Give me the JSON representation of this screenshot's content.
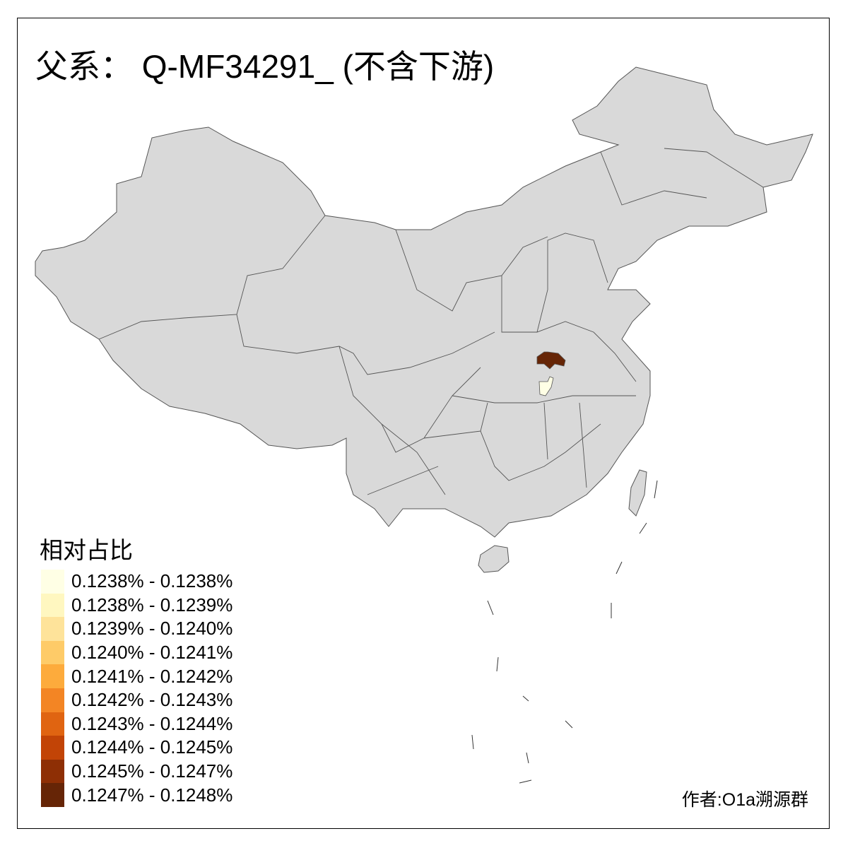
{
  "title": "父系： Q-MF34291_ (不含下游)",
  "legend": {
    "title": "相对占比",
    "items": [
      {
        "label": "0.1238% - 0.1238%",
        "color": "#FFFFE5"
      },
      {
        "label": "0.1238% - 0.1239%",
        "color": "#FFF7C0"
      },
      {
        "label": "0.1239% - 0.1240%",
        "color": "#FEE39A"
      },
      {
        "label": "0.1240% - 0.1241%",
        "color": "#FECB68"
      },
      {
        "label": "0.1241% - 0.1242%",
        "color": "#FDAB3C"
      },
      {
        "label": "0.1242% - 0.1243%",
        "color": "#F38524"
      },
      {
        "label": "0.1243% - 0.1244%",
        "color": "#E06411"
      },
      {
        "label": "0.1244% - 0.1245%",
        "color": "#C24406"
      },
      {
        "label": "0.1245% - 0.1247%",
        "color": "#8E2F05"
      },
      {
        "label": "0.1247% - 0.1248%",
        "color": "#662506"
      }
    ]
  },
  "map": {
    "base_color": "#D9D9D9",
    "border_color": "#555555",
    "highlighted_regions": [
      {
        "class": "0.1247% - 0.1248%",
        "color": "#662506"
      },
      {
        "class": "0.1238% - 0.1238%",
        "color": "#FFFFE5"
      }
    ]
  },
  "credit": "作者:O1a溯源群"
}
